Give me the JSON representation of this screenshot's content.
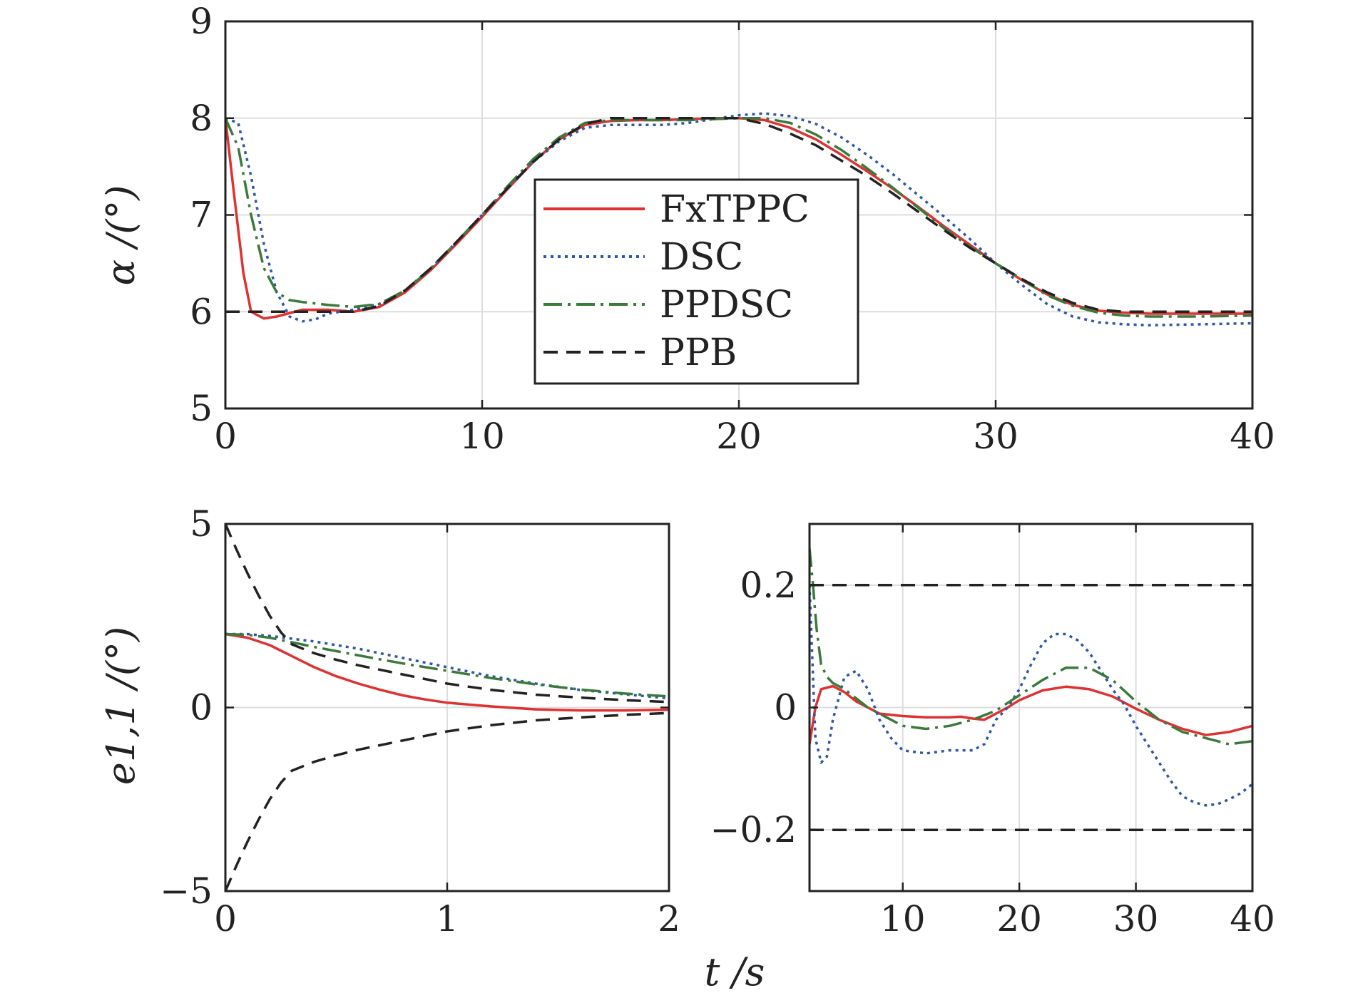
{
  "legend": {
    "entries": [
      {
        "label": "FxTPPC",
        "color": "#e03131",
        "style": "solid"
      },
      {
        "label": "DSC",
        "color": "#2f57a6",
        "style": "dotted"
      },
      {
        "label": "PPDSC",
        "color": "#3a7a3a",
        "style": "dashdot"
      },
      {
        "label": "PPB",
        "color": "#222222",
        "style": "dashed"
      }
    ],
    "position": "center"
  },
  "labels": {
    "top_ylabel": "α /(°)",
    "bottom_ylabel": "e1,1 /(°)",
    "xlabel": "t /s"
  },
  "chart_data": [
    {
      "type": "line",
      "panel": "top",
      "ylabel": "α /(°)",
      "xlim": [
        0,
        40
      ],
      "ylim": [
        5,
        9
      ],
      "xticks": [
        0,
        10,
        20,
        30,
        40
      ],
      "yticks": [
        5,
        6,
        7,
        8,
        9
      ],
      "grid": true,
      "series": [
        {
          "name": "FxTPPC",
          "x": [
            0,
            0.3,
            0.7,
            1,
            1.5,
            2,
            3,
            4,
            5,
            6,
            7,
            8,
            9,
            10,
            11,
            12,
            13,
            14,
            15,
            16,
            17,
            18,
            19,
            20,
            21,
            22,
            23,
            24,
            25,
            26,
            27,
            28,
            29,
            30,
            31,
            32,
            33,
            34,
            35,
            36,
            38,
            40
          ],
          "y": [
            8,
            7.3,
            6.4,
            6.0,
            5.93,
            5.95,
            6.02,
            6.02,
            6.0,
            6.05,
            6.2,
            6.43,
            6.7,
            6.98,
            7.27,
            7.55,
            7.78,
            7.93,
            7.97,
            7.98,
            7.98,
            7.99,
            8.0,
            8.0,
            7.98,
            7.9,
            7.78,
            7.62,
            7.45,
            7.27,
            7.08,
            6.88,
            6.69,
            6.5,
            6.33,
            6.18,
            6.07,
            6.01,
            5.99,
            5.98,
            5.98,
            5.98
          ]
        },
        {
          "name": "DSC",
          "x": [
            0,
            0.5,
            1,
            1.5,
            2,
            2.5,
            3,
            3.5,
            4,
            5,
            6,
            7,
            8,
            9,
            10,
            11,
            12,
            13,
            14,
            15,
            16,
            17,
            18,
            19,
            20,
            21,
            22,
            23,
            24,
            25,
            26,
            27,
            28,
            29,
            30,
            31,
            32,
            33,
            34,
            35,
            36,
            38,
            40
          ],
          "y": [
            8,
            7.95,
            7.4,
            6.7,
            6.2,
            5.95,
            5.9,
            5.92,
            5.98,
            6.02,
            6.08,
            6.22,
            6.45,
            6.72,
            7.0,
            7.28,
            7.55,
            7.76,
            7.9,
            7.93,
            7.93,
            7.93,
            7.95,
            7.99,
            8.03,
            8.05,
            8.02,
            7.94,
            7.8,
            7.62,
            7.42,
            7.2,
            6.98,
            6.75,
            6.5,
            6.28,
            6.08,
            5.95,
            5.89,
            5.87,
            5.86,
            5.87,
            5.88
          ]
        },
        {
          "name": "PPDSC",
          "x": [
            0,
            0.5,
            1,
            1.5,
            2,
            2.5,
            3,
            4,
            5,
            6,
            7,
            8,
            9,
            10,
            11,
            12,
            13,
            14,
            15,
            16,
            17,
            18,
            19,
            20,
            21,
            22,
            23,
            24,
            25,
            26,
            27,
            28,
            29,
            30,
            31,
            32,
            33,
            34,
            35,
            36,
            38,
            40
          ],
          "y": [
            8,
            7.7,
            7.0,
            6.45,
            6.2,
            6.12,
            6.1,
            6.07,
            6.05,
            6.08,
            6.22,
            6.44,
            6.72,
            7.0,
            7.3,
            7.58,
            7.8,
            7.95,
            7.98,
            7.98,
            7.98,
            7.98,
            7.99,
            8.0,
            8.0,
            7.95,
            7.83,
            7.67,
            7.48,
            7.28,
            7.07,
            6.86,
            6.67,
            6.5,
            6.34,
            6.17,
            6.06,
            5.99,
            5.96,
            5.95,
            5.95,
            5.96
          ]
        },
        {
          "name": "PPB",
          "x": [
            0,
            5,
            6,
            7,
            8,
            9,
            10,
            11,
            12,
            13,
            14,
            15,
            16,
            17,
            18,
            19,
            20,
            21,
            22,
            23,
            24,
            25,
            26,
            27,
            28,
            29,
            30,
            31,
            32,
            33,
            34,
            35,
            40
          ],
          "y": [
            6,
            6,
            6.06,
            6.22,
            6.45,
            6.72,
            7.0,
            7.28,
            7.55,
            7.78,
            7.94,
            8,
            8,
            8,
            8,
            8,
            8,
            7.94,
            7.84,
            7.72,
            7.56,
            7.4,
            7.22,
            7.03,
            6.84,
            6.66,
            6.5,
            6.34,
            6.2,
            6.09,
            6.02,
            6,
            6
          ]
        }
      ]
    },
    {
      "type": "line",
      "panel": "bottom-left",
      "ylabel": "e1,1 /(°)",
      "xlim": [
        0,
        2
      ],
      "ylim": [
        -5,
        5
      ],
      "xticks": [
        0,
        1,
        2
      ],
      "yticks": [
        -5,
        0,
        5
      ],
      "grid": true,
      "series": [
        {
          "name": "FxTPPC",
          "x": [
            0,
            0.1,
            0.2,
            0.3,
            0.4,
            0.5,
            0.6,
            0.7,
            0.8,
            0.9,
            1.0,
            1.2,
            1.4,
            1.6,
            1.8,
            2.0
          ],
          "y": [
            2,
            1.9,
            1.7,
            1.4,
            1.1,
            0.85,
            0.65,
            0.48,
            0.33,
            0.22,
            0.13,
            0.03,
            -0.05,
            -0.08,
            -0.08,
            -0.06
          ]
        },
        {
          "name": "DSC",
          "x": [
            0,
            0.1,
            0.2,
            0.4,
            0.6,
            0.8,
            1.0,
            1.2,
            1.4,
            1.6,
            1.8,
            2.0
          ],
          "y": [
            2,
            2.0,
            1.95,
            1.8,
            1.6,
            1.35,
            1.1,
            0.85,
            0.65,
            0.48,
            0.36,
            0.25
          ]
        },
        {
          "name": "PPDSC",
          "x": [
            0,
            0.1,
            0.2,
            0.4,
            0.6,
            0.8,
            1.0,
            1.2,
            1.4,
            1.6,
            1.8,
            2.0
          ],
          "y": [
            2,
            1.98,
            1.9,
            1.65,
            1.42,
            1.2,
            1.0,
            0.8,
            0.63,
            0.49,
            0.38,
            0.3
          ]
        },
        {
          "name": "PPB-upper",
          "x": [
            0,
            0.05,
            0.1,
            0.15,
            0.2,
            0.25,
            0.3,
            0.4,
            0.5,
            0.6,
            0.8,
            1.0,
            1.2,
            1.4,
            1.6,
            1.8,
            2.0
          ],
          "y": [
            5,
            4.3,
            3.65,
            3.05,
            2.5,
            2.05,
            1.72,
            1.48,
            1.3,
            1.15,
            0.9,
            0.65,
            0.48,
            0.35,
            0.27,
            0.2,
            0.15
          ]
        },
        {
          "name": "PPB-lower",
          "x": [
            0,
            0.05,
            0.1,
            0.15,
            0.2,
            0.25,
            0.3,
            0.4,
            0.5,
            0.6,
            0.8,
            1.0,
            1.2,
            1.4,
            1.6,
            1.8,
            2.0
          ],
          "y": [
            -5,
            -4.3,
            -3.65,
            -3.05,
            -2.5,
            -2.05,
            -1.72,
            -1.48,
            -1.3,
            -1.15,
            -0.9,
            -0.65,
            -0.48,
            -0.35,
            -0.27,
            -0.2,
            -0.15
          ]
        }
      ]
    },
    {
      "type": "line",
      "panel": "bottom-right",
      "xlim": [
        2,
        40
      ],
      "ylim": [
        -0.3,
        0.3
      ],
      "xticks": [
        10,
        20,
        30,
        40
      ],
      "yticks": [
        -0.2,
        0,
        0.2
      ],
      "grid": true,
      "series": [
        {
          "name": "FxTPPC",
          "x": [
            2,
            2.5,
            3,
            4,
            5,
            6,
            7,
            8,
            9,
            10,
            12,
            14,
            15,
            16,
            17,
            18,
            19,
            20,
            22,
            24,
            26,
            28,
            30,
            32,
            34,
            36,
            38,
            40
          ],
          "y": [
            -0.06,
            0.0,
            0.03,
            0.035,
            0.025,
            0.01,
            0.0,
            -0.01,
            -0.012,
            -0.014,
            -0.016,
            -0.016,
            -0.015,
            -0.018,
            -0.02,
            -0.01,
            0.0,
            0.012,
            0.028,
            0.034,
            0.03,
            0.018,
            -0.002,
            -0.02,
            -0.035,
            -0.045,
            -0.04,
            -0.03
          ]
        },
        {
          "name": "DSC",
          "x": [
            2,
            2.5,
            3,
            3.5,
            4,
            5,
            6,
            7,
            8,
            9,
            10,
            12,
            14,
            16,
            17,
            18,
            19,
            20,
            21,
            22,
            23,
            24,
            25,
            26,
            27,
            28,
            29,
            30,
            31,
            32,
            33,
            34,
            35,
            36,
            37,
            38,
            39,
            40
          ],
          "y": [
            0.2,
            -0.05,
            -0.09,
            -0.08,
            -0.02,
            0.05,
            0.06,
            0.03,
            -0.02,
            -0.05,
            -0.07,
            -0.075,
            -0.07,
            -0.07,
            -0.06,
            -0.02,
            0.0,
            0.03,
            0.07,
            0.105,
            0.12,
            0.12,
            0.11,
            0.09,
            0.06,
            0.03,
            0.005,
            -0.03,
            -0.06,
            -0.09,
            -0.12,
            -0.145,
            -0.155,
            -0.16,
            -0.158,
            -0.15,
            -0.14,
            -0.125
          ]
        },
        {
          "name": "PPDSC",
          "x": [
            2,
            2.3,
            2.6,
            3,
            3.5,
            4,
            5,
            6,
            7,
            8,
            9,
            10,
            12,
            14,
            16,
            18,
            20,
            22,
            24,
            26,
            28,
            30,
            32,
            34,
            36,
            38,
            40
          ],
          "y": [
            0.26,
            0.2,
            0.13,
            0.07,
            0.05,
            0.04,
            0.03,
            0.015,
            0.0,
            -0.01,
            -0.02,
            -0.03,
            -0.035,
            -0.03,
            -0.02,
            -0.005,
            0.02,
            0.045,
            0.065,
            0.065,
            0.045,
            0.01,
            -0.02,
            -0.04,
            -0.05,
            -0.06,
            -0.055
          ]
        },
        {
          "name": "PPB-upper",
          "x": [
            2,
            40
          ],
          "y": [
            0.2,
            0.2
          ]
        },
        {
          "name": "PPB-lower",
          "x": [
            2,
            40
          ],
          "y": [
            -0.2,
            -0.2
          ]
        }
      ]
    }
  ]
}
